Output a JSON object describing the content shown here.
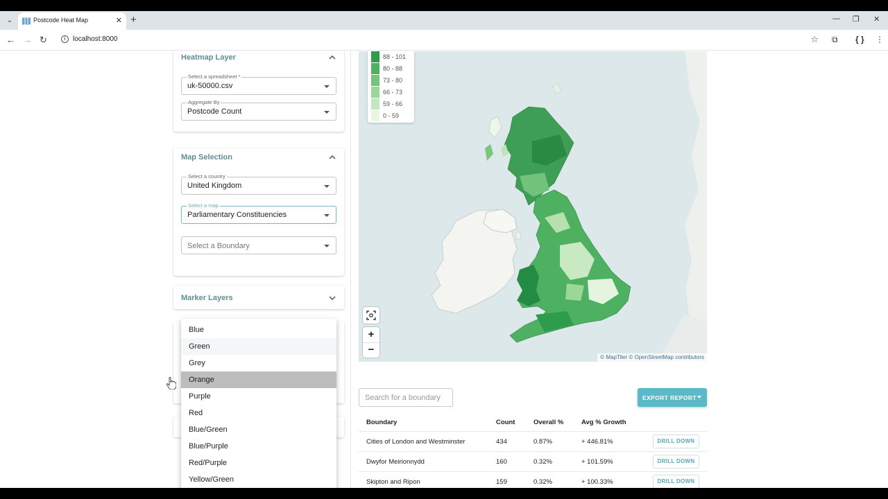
{
  "browser": {
    "tab_title": "Postcode Heat Map",
    "url": "localhost:8000"
  },
  "sidebar": {
    "heatmap": {
      "title": "Heatmap Layer",
      "spreadsheet_label": "Select a spreadsheet *",
      "spreadsheet_value": "uk-50000.csv",
      "aggregate_label": "Aggregate By",
      "aggregate_value": "Postcode Count"
    },
    "map_selection": {
      "title": "Map Selection",
      "country_label": "Select a country",
      "country_value": "United Kingdom",
      "map_label": "Select a map",
      "map_value": "Parliamentary Constituencies",
      "boundary_placeholder": "Select a Boundary"
    },
    "marker_layers": {
      "title": "Marker Layers"
    }
  },
  "dropdown": {
    "options": [
      "Blue",
      "Green",
      "Grey",
      "Orange",
      "Purple",
      "Red",
      "Blue/Green",
      "Blue/Purple",
      "Red/Purple",
      "Yellow/Green"
    ],
    "highlighted": "Orange",
    "selected": "Green"
  },
  "map": {
    "legend": [
      {
        "range": "88 - 101",
        "color": "#2e9c4a"
      },
      {
        "range": "80 - 88",
        "color": "#4eb162"
      },
      {
        "range": "73 - 80",
        "color": "#74c57c"
      },
      {
        "range": "66 - 73",
        "color": "#9ad798"
      },
      {
        "range": "59 - 66",
        "color": "#c4e8bd"
      },
      {
        "range": "0 - 59",
        "color": "#e9f6e3"
      }
    ],
    "zoom_in": "+",
    "zoom_out": "−",
    "attribution": "© MapTiler © OpenStreetMap contributors"
  },
  "report": {
    "search_placeholder": "Search for a boundary",
    "export_label": "EXPORT REPORT",
    "columns": [
      "Boundary",
      "Count",
      "Overall %",
      "Avg % Growth"
    ],
    "drill_label": "DRILL DOWN",
    "rows": [
      {
        "boundary": "Cities of London and Westminster",
        "count": "434",
        "overall": "0.87%",
        "growth": "+ 446.81%"
      },
      {
        "boundary": "Dwyfor Meirionnydd",
        "count": "160",
        "overall": "0.32%",
        "growth": "+ 101.59%"
      },
      {
        "boundary": "Skipton and Ripon",
        "count": "159",
        "overall": "0.32%",
        "growth": "+ 100.33%"
      }
    ]
  }
}
